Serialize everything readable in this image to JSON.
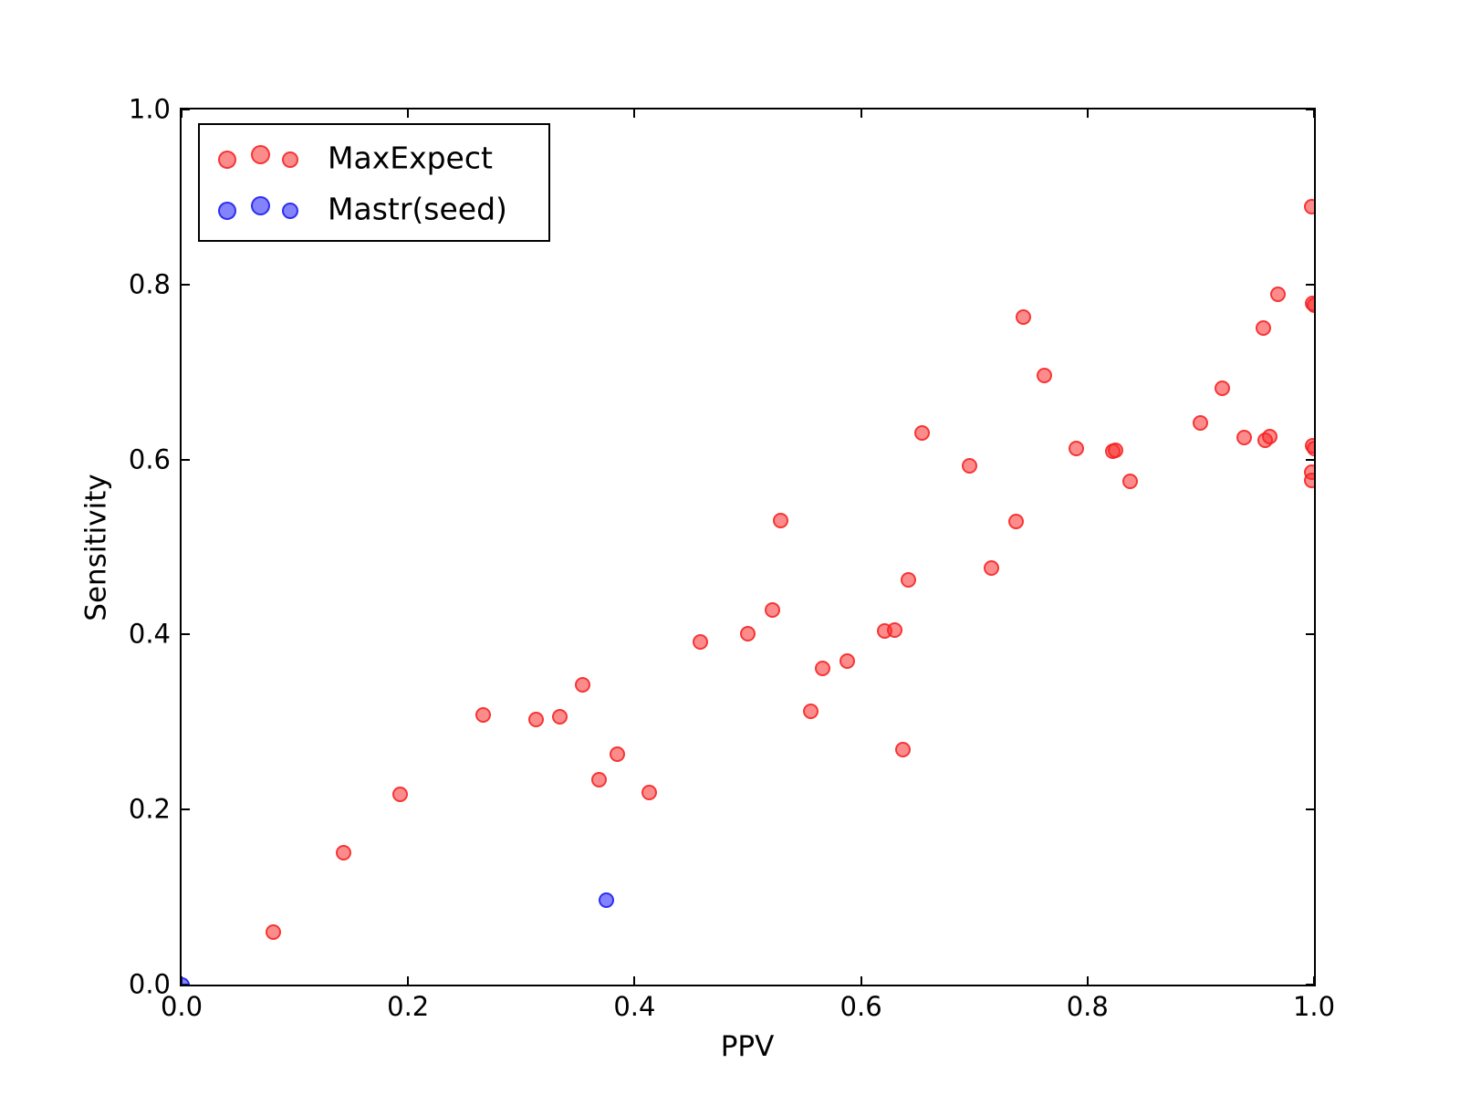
{
  "chart_data": {
    "type": "scatter",
    "title": "",
    "xlabel": "PPV",
    "ylabel": "Sensitivity",
    "xlim": [
      0.0,
      1.0
    ],
    "ylim": [
      0.0,
      1.0
    ],
    "xtick_labels": [
      "0.0",
      "0.2",
      "0.4",
      "0.6",
      "0.8",
      "1.0"
    ],
    "ytick_labels": [
      "0.0",
      "0.2",
      "0.4",
      "0.6",
      "0.8",
      "1.0"
    ],
    "xtick_values": [
      0.0,
      0.2,
      0.4,
      0.6,
      0.8,
      1.0
    ],
    "ytick_values": [
      0.0,
      0.2,
      0.4,
      0.6,
      0.8,
      1.0
    ],
    "grid": false,
    "legend": {
      "position": "upper left",
      "entries": [
        {
          "label": "MaxExpect",
          "fill": "rgba(250,45,45,0.55)",
          "edge": "rgba(245,30,30,0.8)"
        },
        {
          "label": "Mastr(seed)",
          "fill": "rgba(30,30,248,0.55)",
          "edge": "rgba(25,25,240,0.8)"
        }
      ]
    },
    "series": [
      {
        "name": "MaxExpect",
        "fill": "rgba(250,45,45,0.55)",
        "edge": "rgba(245,30,30,0.8)",
        "points": [
          [
            0.081,
            0.06
          ],
          [
            0.143,
            0.151
          ],
          [
            0.193,
            0.217
          ],
          [
            0.266,
            0.308
          ],
          [
            0.313,
            0.303
          ],
          [
            0.334,
            0.306
          ],
          [
            0.354,
            0.343
          ],
          [
            0.369,
            0.234
          ],
          [
            0.385,
            0.263
          ],
          [
            0.413,
            0.219
          ],
          [
            0.458,
            0.392
          ],
          [
            0.5,
            0.401
          ],
          [
            0.522,
            0.428
          ],
          [
            0.529,
            0.53
          ],
          [
            0.556,
            0.312
          ],
          [
            0.566,
            0.361
          ],
          [
            0.588,
            0.37
          ],
          [
            0.621,
            0.404
          ],
          [
            0.63,
            0.405
          ],
          [
            0.637,
            0.269
          ],
          [
            0.642,
            0.462
          ],
          [
            0.654,
            0.63
          ],
          [
            0.696,
            0.593
          ],
          [
            0.715,
            0.476
          ],
          [
            0.737,
            0.529
          ],
          [
            0.743,
            0.763
          ],
          [
            0.762,
            0.696
          ],
          [
            0.79,
            0.613
          ],
          [
            0.822,
            0.61
          ],
          [
            0.825,
            0.611
          ],
          [
            0.838,
            0.575
          ],
          [
            0.9,
            0.642
          ],
          [
            0.919,
            0.681
          ],
          [
            0.938,
            0.625
          ],
          [
            0.955,
            0.75
          ],
          [
            0.957,
            0.622
          ],
          [
            0.961,
            0.626
          ],
          [
            0.968,
            0.789
          ],
          [
            0.998,
            0.889
          ],
          [
            0.999,
            0.778
          ],
          [
            1.0,
            0.776
          ],
          [
            0.999,
            0.616
          ],
          [
            1.0,
            0.613
          ],
          [
            0.998,
            0.586
          ],
          [
            0.998,
            0.576
          ]
        ]
      },
      {
        "name": "Mastr(seed)",
        "fill": "rgba(30,30,248,0.55)",
        "edge": "rgba(25,25,240,0.8)",
        "points": [
          [
            0.0,
            0.0
          ],
          [
            0.375,
            0.096
          ]
        ]
      }
    ]
  }
}
